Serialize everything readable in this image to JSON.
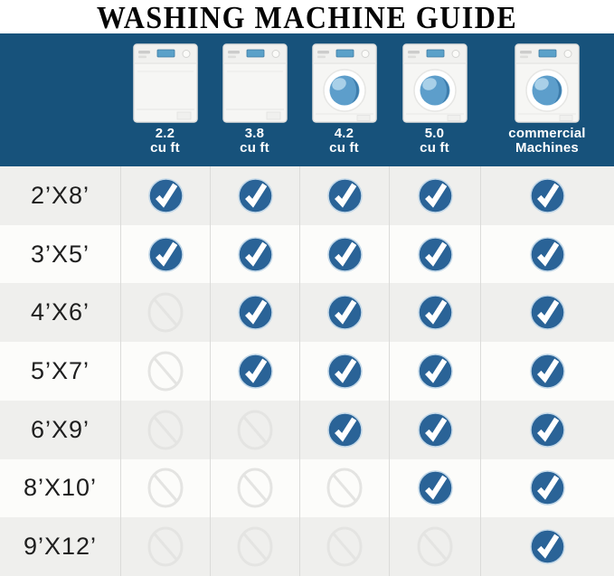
{
  "title": "WASHING MACHINE GUIDE",
  "colors": {
    "header_band": "#17527b",
    "check_blue": "#2a6397",
    "row_alt": "#efefed",
    "row_white": "#fcfcfa",
    "divider": "#dbdbd9",
    "prohibited_gray": "#e4e4e2"
  },
  "header": {
    "machines": [
      {
        "label_line1": "2.2",
        "label_line2": "cu ft",
        "style": "top-load"
      },
      {
        "label_line1": "3.8",
        "label_line2": "cu ft",
        "style": "top-load"
      },
      {
        "label_line1": "4.2",
        "label_line2": "cu ft",
        "style": "front-load"
      },
      {
        "label_line1": "5.0",
        "label_line2": "cu ft",
        "style": "front-load"
      },
      {
        "label_line1": "commercial",
        "label_line2": "Machines",
        "style": "front-load"
      }
    ]
  },
  "chart_data": {
    "type": "table",
    "title": "WASHING MACHINE GUIDE",
    "columns": [
      "2.2 cu ft",
      "3.8 cu ft",
      "4.2 cu ft",
      "5.0 cu ft",
      "commercial Machines"
    ],
    "rows": [
      {
        "size": "2’X8’",
        "fits": [
          true,
          true,
          true,
          true,
          true
        ]
      },
      {
        "size": "3’X5’",
        "fits": [
          true,
          true,
          true,
          true,
          true
        ]
      },
      {
        "size": "4’X6’",
        "fits": [
          false,
          true,
          true,
          true,
          true
        ]
      },
      {
        "size": "5’X7’",
        "fits": [
          false,
          true,
          true,
          true,
          true
        ]
      },
      {
        "size": "6’X9’",
        "fits": [
          false,
          false,
          true,
          true,
          true
        ]
      },
      {
        "size": "8’X10’",
        "fits": [
          false,
          false,
          false,
          true,
          true
        ]
      },
      {
        "size": "9’X12’",
        "fits": [
          false,
          false,
          false,
          false,
          true
        ]
      }
    ],
    "true_icon": "check-icon",
    "false_icon": "prohibited-icon"
  }
}
